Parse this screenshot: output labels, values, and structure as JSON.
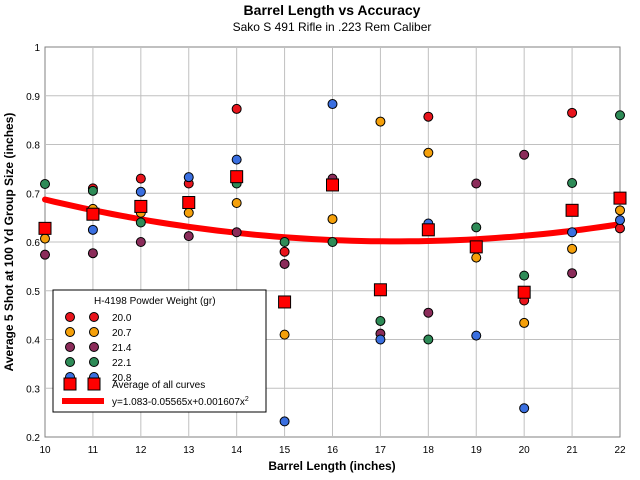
{
  "chart_data": {
    "type": "scatter",
    "title": "Barrel Length vs Accuracy",
    "subtitle": "Sako S 491 Rifle in .223 Rem Caliber",
    "xlabel": "Barrel Length (inches)",
    "ylabel": "Average 5 Shot at 100 Yd Group Size (inches)",
    "xlim": [
      10,
      22
    ],
    "ylim": [
      0.2,
      1.0
    ],
    "xticks": [
      "10",
      "11",
      "12",
      "13",
      "14",
      "15",
      "16",
      "17",
      "18",
      "19",
      "20",
      "21",
      "22"
    ],
    "yticks": [
      "0.2",
      "0.3",
      "0.4",
      "0.5",
      "0.6",
      "0.7",
      "0.8",
      "0.9",
      "1"
    ],
    "grid": true,
    "legend": {
      "title": "H-4198 Powder Weight (gr)",
      "position": "bottom-left",
      "fit_label": "y=1.083-0.05565x+0.001607x",
      "fit_label_sup": "2"
    },
    "series": [
      {
        "name": "20.0",
        "color": "#e8141c",
        "x": [
          10,
          11,
          12,
          13,
          14,
          15,
          16,
          18,
          20,
          21,
          22
        ],
        "y": [
          0.625,
          0.71,
          0.73,
          0.72,
          0.873,
          0.58,
          0.715,
          0.857,
          0.48,
          0.865,
          0.628
        ]
      },
      {
        "name": "20.7",
        "color": "#f5a00a",
        "x": [
          10,
          11,
          12,
          13,
          14,
          15,
          16,
          17,
          18,
          19,
          20,
          21,
          22
        ],
        "y": [
          0.607,
          0.668,
          0.66,
          0.66,
          0.68,
          0.41,
          0.647,
          0.847,
          0.783,
          0.568,
          0.434,
          0.586,
          0.665
        ]
      },
      {
        "name": "21.4",
        "color": "#8b2c5a",
        "x": [
          10,
          11,
          12,
          13,
          14,
          15,
          16,
          17,
          18,
          19,
          20,
          21
        ],
        "y": [
          0.574,
          0.577,
          0.6,
          0.612,
          0.62,
          0.555,
          0.73,
          0.412,
          0.455,
          0.72,
          0.779,
          0.536
        ]
      },
      {
        "name": "22.1",
        "color": "#2e8b57",
        "x": [
          10,
          11,
          12,
          13,
          14,
          15,
          16,
          17,
          18,
          19,
          20,
          21,
          22
        ],
        "y": [
          0.719,
          0.705,
          0.64,
          0.68,
          0.72,
          0.6,
          0.6,
          0.438,
          0.4,
          0.63,
          0.531,
          0.721,
          0.86
        ]
      },
      {
        "name": "20.8",
        "color": "#3a6fe0",
        "x": [
          10,
          11,
          12,
          13,
          14,
          15,
          16,
          17,
          18,
          19,
          20,
          21,
          22
        ],
        "y": [
          0.63,
          0.625,
          0.703,
          0.733,
          0.769,
          0.232,
          0.883,
          0.4,
          0.638,
          0.408,
          0.259,
          0.62,
          0.645
        ]
      }
    ],
    "average": {
      "name": "Average of all curves",
      "color": "#ff0000",
      "x": [
        10,
        11,
        12,
        13,
        14,
        15,
        16,
        17,
        18,
        19,
        20,
        21,
        22
      ],
      "y": [
        0.628,
        0.657,
        0.673,
        0.681,
        0.734,
        0.477,
        0.717,
        0.502,
        0.625,
        0.59,
        0.497,
        0.665,
        0.69
      ]
    },
    "fit": {
      "color": "#ff0000",
      "coefficients": [
        1.083,
        -0.05565,
        0.001607
      ]
    }
  }
}
